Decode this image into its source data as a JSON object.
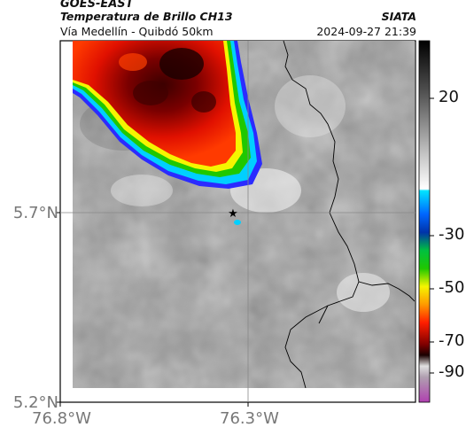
{
  "header": {
    "satellite": "GOES-EAST",
    "product": "Temperatura de Brillo CH13",
    "route": "Vía Medellín - Quibdó 50km",
    "source": "SIATA",
    "datetime": "2024-09-27 21:39"
  },
  "map": {
    "lat_ticks": [
      "5.7°N",
      "5.2°N"
    ],
    "lon_ticks": [
      "76.8°W",
      "76.3°W"
    ],
    "marker": "star-marker"
  },
  "colorbar": {
    "ticks": [
      "20",
      "-30",
      "-50",
      "-70",
      "-90"
    ],
    "colors": {
      "black": "#000000",
      "gray": "#a0a0a0",
      "white": "#ffffff",
      "cyan": "#00e5ff",
      "blue": "#0033cc",
      "green": "#1fc800",
      "yellow": "#f5f500",
      "red": "#ff1e00",
      "darkred": "#5a0000",
      "magenta": "#b040b0"
    }
  }
}
